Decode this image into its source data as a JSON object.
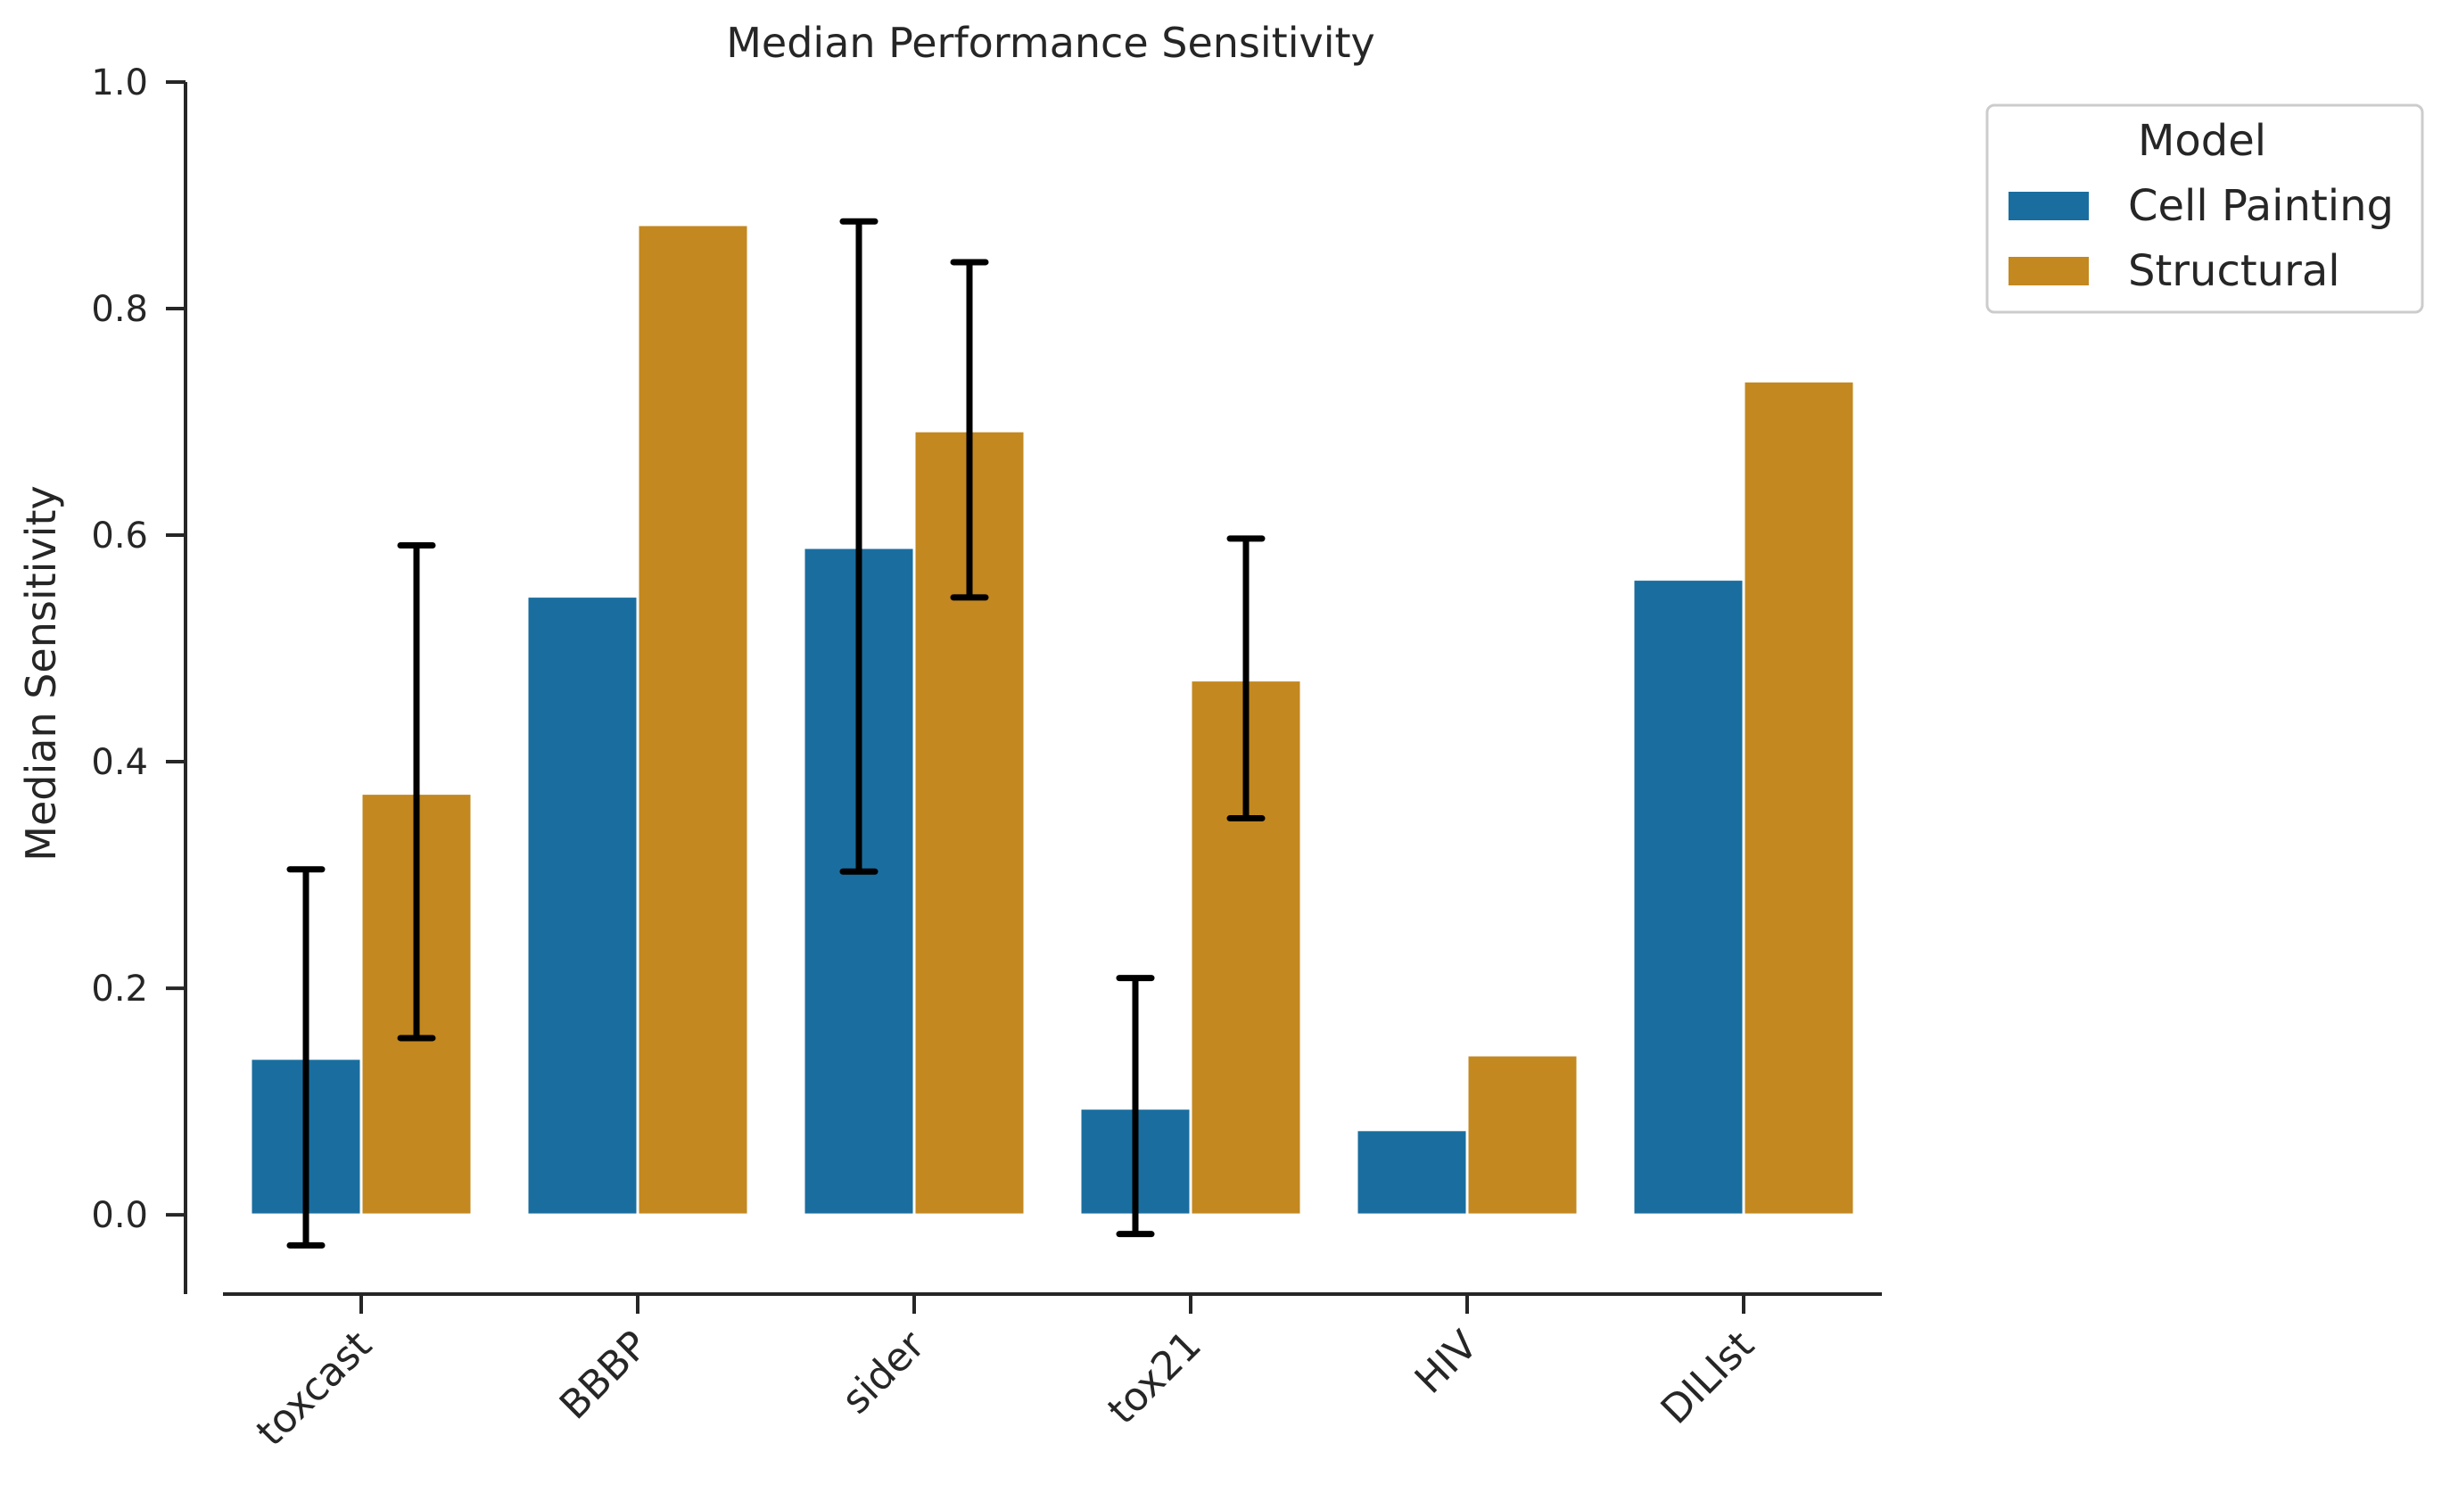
{
  "chart_data": {
    "type": "bar",
    "title": "Median Performance Sensitivity",
    "xlabel": "",
    "ylabel": "Median Sensitivity",
    "ylim": [
      -0.07,
      1.0
    ],
    "yticks": [
      "0.0",
      "0.2",
      "0.4",
      "0.6",
      "0.8",
      "1.0"
    ],
    "categories": [
      "toxcast",
      "BBBP",
      "sider",
      "tox21",
      "HIV",
      "DILIst"
    ],
    "series": [
      {
        "name": "Cell Painting",
        "color": "#1a6e9f",
        "values": [
          0.138,
          0.546,
          0.589,
          0.094,
          0.075,
          0.561
        ],
        "error_low": [
          -0.027,
          null,
          0.303,
          -0.017,
          null,
          null
        ],
        "error_high": [
          0.305,
          null,
          0.877,
          0.209,
          null,
          null
        ]
      },
      {
        "name": "Structural",
        "color": "#c38820",
        "values": [
          0.372,
          0.874,
          0.692,
          0.472,
          0.141,
          0.736
        ],
        "error_low": [
          0.156,
          null,
          0.545,
          0.35,
          null,
          null
        ],
        "error_high": [
          0.591,
          null,
          0.841,
          0.597,
          null,
          null
        ]
      }
    ],
    "grid": false,
    "legend": {
      "title": "Model",
      "placement": "outside-top-right"
    }
  }
}
